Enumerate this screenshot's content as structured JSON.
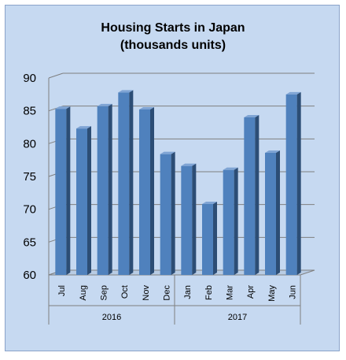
{
  "chart_data": {
    "type": "bar",
    "title_lines": [
      "Housing Starts in Japan",
      "(thousands units)"
    ],
    "xlabel": "",
    "ylabel": "",
    "categories": [
      "Jul",
      "Aug",
      "Sep",
      "Oct",
      "Nov",
      "Dec",
      "Jan",
      "Feb",
      "Mar",
      "Apr",
      "May",
      "Jun"
    ],
    "groups": [
      {
        "label": "2016",
        "start": 0,
        "end": 5
      },
      {
        "label": "2017",
        "start": 6,
        "end": 11
      }
    ],
    "values": [
      85.3,
      82.3,
      85.7,
      87.8,
      85.2,
      78.4,
      76.6,
      70.8,
      76.0,
      84.0,
      78.6,
      87.5
    ],
    "ylim": [
      60,
      90
    ],
    "yticks": [
      60,
      65,
      70,
      75,
      80,
      85,
      90
    ],
    "grid": true,
    "legend": "none",
    "colors": {
      "bar_front": "#4f81bd",
      "bar_side": "#2c4d75",
      "bar_top": "#7fa4d4",
      "background": "#c6d9f1",
      "gridline": "#7f7f7f"
    }
  }
}
